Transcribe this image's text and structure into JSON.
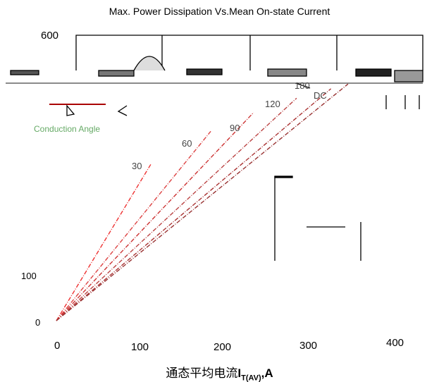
{
  "chart_data": {
    "type": "line",
    "title": "Max. Power Dissipation Vs.Mean On-state Current",
    "xlabel_prefix": "通态平均电流",
    "xlabel_symbol": "I",
    "xlabel_subscript": "T(AV)",
    "xlabel_unit": ",A",
    "xlim": [
      0,
      440
    ],
    "ylim": [
      0,
      600
    ],
    "x_ticks": [
      "0",
      "100",
      "200",
      "300",
      "400"
    ],
    "y_ticks": [
      "0",
      "100",
      "600"
    ],
    "inset_label": "Conduction Angle",
    "series": [
      {
        "name": "30",
        "x": [
          0,
          110
        ],
        "y": [
          0,
          330
        ]
      },
      {
        "name": "60",
        "x": [
          0,
          180
        ],
        "y": [
          0,
          400
        ]
      },
      {
        "name": "90",
        "x": [
          0,
          230
        ],
        "y": [
          0,
          440
        ]
      },
      {
        "name": "120",
        "x": [
          0,
          280
        ],
        "y": [
          0,
          470
        ]
      },
      {
        "name": "180",
        "x": [
          0,
          320
        ],
        "y": [
          0,
          490
        ]
      },
      {
        "name": "DC",
        "x": [
          0,
          340
        ],
        "y": [
          0,
          500
        ]
      }
    ],
    "grid": false
  }
}
